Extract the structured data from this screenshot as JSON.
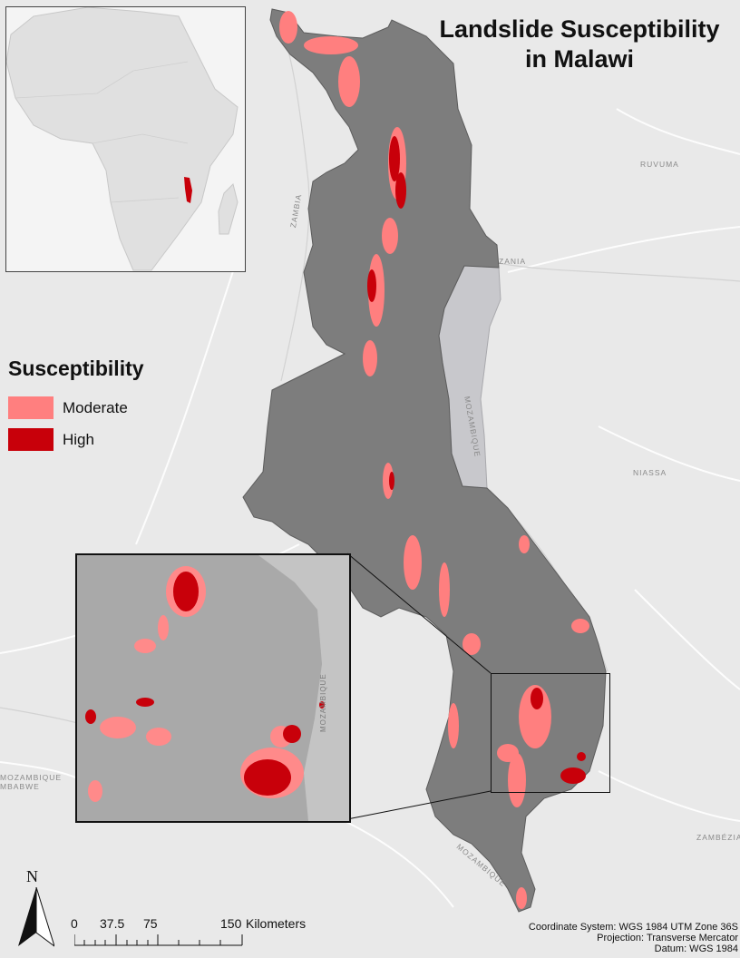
{
  "title": {
    "line1": "Landslide Susceptibility",
    "line2": "in Malawi"
  },
  "legend": {
    "heading": "Susceptibility",
    "items": [
      {
        "label": "Moderate",
        "color": "#ff7f7f"
      },
      {
        "label": "High",
        "color": "#c8000a"
      }
    ]
  },
  "basemap_labels": {
    "ruvuma": "RUVUMA",
    "niassa": "NIASSA",
    "zambezia": "ZAMBÉZIA",
    "zambia": "ZAMBIA",
    "tanzania": "ZANIA",
    "mozambique_lake": "MOZAMBIQUE",
    "mozambique_south": "MOZAMBIQUE",
    "mozambique_west": "MOZAMBIQUE",
    "zimbabwe": "MBABWE",
    "mozambique_inset": "MOZAMBIQUE"
  },
  "north_arrow": {
    "letter": "N"
  },
  "scale_bar": {
    "ticks": [
      "0",
      "37.5",
      "75",
      "150"
    ],
    "units": "Kilometers"
  },
  "coordinate_info": {
    "system": "Coordinate System: WGS 1984 UTM Zone 36S",
    "projection": "Projection: Transverse Mercator",
    "datum": "Datum: WGS 1984"
  },
  "colors": {
    "background": "#e9e9e9",
    "malawi": "#7d7d7d",
    "lake": "#c8c8cc",
    "moderate": "#ff7f7f",
    "high": "#c8000a"
  }
}
